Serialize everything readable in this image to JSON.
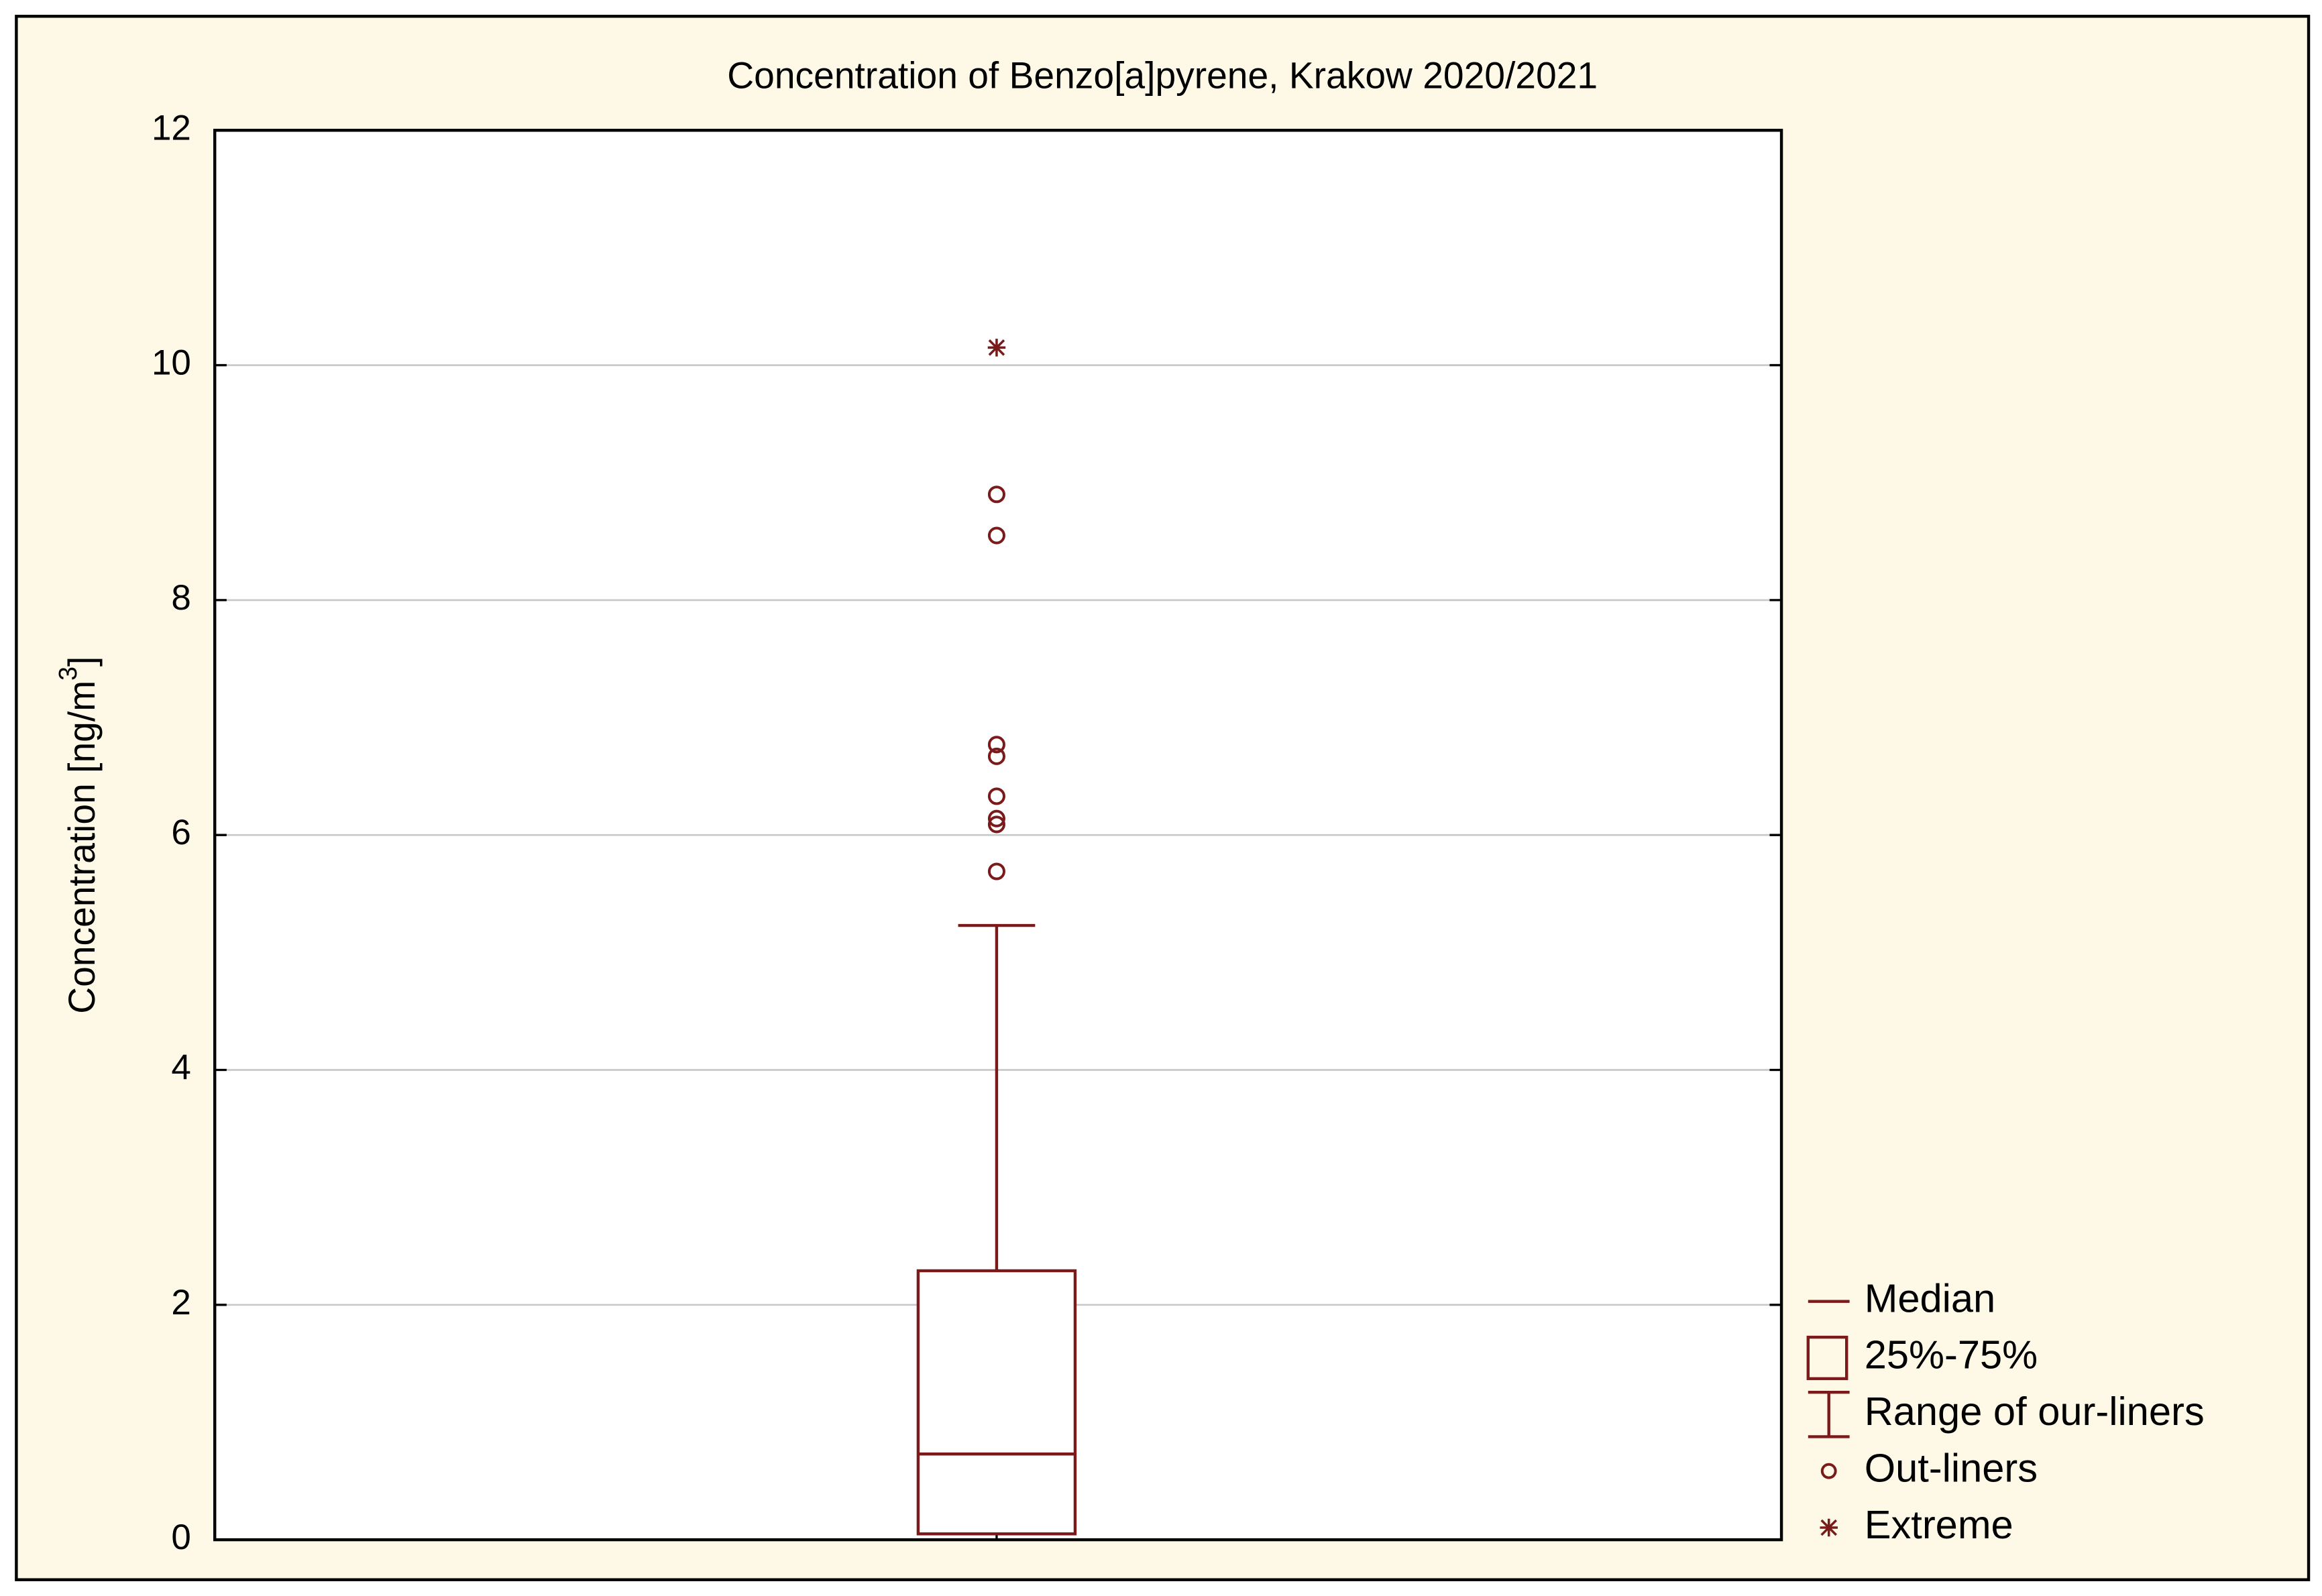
{
  "chart_data": {
    "type": "box",
    "title": "Concentration of Benzo[a]pyrene, Krakow 2020/2021",
    "y_label_parts": [
      "Concentration [ng/m",
      "3",
      "]"
    ],
    "color": "#7b1a1a",
    "boxes": [
      {
        "q1": 0.05,
        "median": 0.73,
        "q3": 2.29,
        "whisker_high": 5.23,
        "outliers": [
          5.69,
          6.09,
          6.14,
          6.33,
          6.67,
          6.77,
          8.55,
          8.9
        ],
        "extremes": [
          10.15
        ]
      }
    ],
    "ylim": [
      0,
      12
    ],
    "yticks": [
      0,
      2,
      4,
      6,
      8,
      10,
      12
    ],
    "grid": true,
    "legend": [
      "Median",
      "25%-75%",
      "Range of our-liners",
      "Out-liners",
      "Extreme"
    ],
    "legend_position": "lower right"
  }
}
